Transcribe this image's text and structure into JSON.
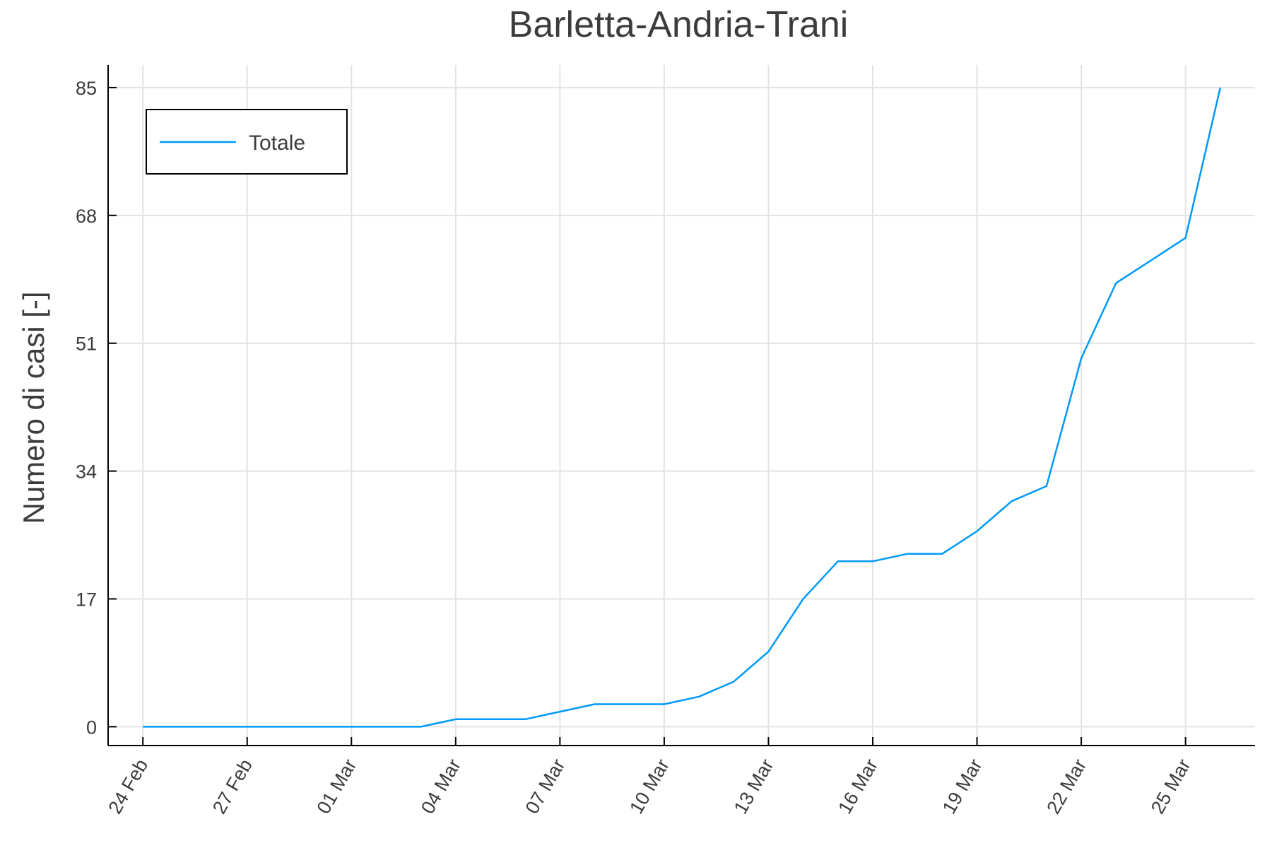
{
  "chart_data": {
    "type": "line",
    "title": "Barletta-Andria-Trani",
    "ylabel": "Numero di casi [-]",
    "xlabel": "",
    "ylim": [
      -2.5,
      88
    ],
    "xlim": [
      "2020-02-23",
      "2020-03-27"
    ],
    "yticks": [
      0,
      17,
      34,
      51,
      68,
      85
    ],
    "xticks": [
      {
        "date": "2020-02-24",
        "label": "24 Feb"
      },
      {
        "date": "2020-02-27",
        "label": "27 Feb"
      },
      {
        "date": "2020-03-01",
        "label": "01 Mar"
      },
      {
        "date": "2020-03-04",
        "label": "04 Mar"
      },
      {
        "date": "2020-03-07",
        "label": "07 Mar"
      },
      {
        "date": "2020-03-10",
        "label": "10 Mar"
      },
      {
        "date": "2020-03-13",
        "label": "13 Mar"
      },
      {
        "date": "2020-03-16",
        "label": "16 Mar"
      },
      {
        "date": "2020-03-19",
        "label": "19 Mar"
      },
      {
        "date": "2020-03-22",
        "label": "22 Mar"
      },
      {
        "date": "2020-03-25",
        "label": "25 Mar"
      }
    ],
    "grid": true,
    "legend_position": "top-left",
    "series": [
      {
        "name": "Totale",
        "color": "#009af9",
        "x": [
          "2020-02-24",
          "2020-02-25",
          "2020-02-26",
          "2020-02-27",
          "2020-02-28",
          "2020-02-29",
          "2020-03-01",
          "2020-03-02",
          "2020-03-03",
          "2020-03-04",
          "2020-03-05",
          "2020-03-06",
          "2020-03-07",
          "2020-03-08",
          "2020-03-09",
          "2020-03-10",
          "2020-03-11",
          "2020-03-12",
          "2020-03-13",
          "2020-03-14",
          "2020-03-15",
          "2020-03-16",
          "2020-03-17",
          "2020-03-18",
          "2020-03-19",
          "2020-03-20",
          "2020-03-21",
          "2020-03-22",
          "2020-03-23",
          "2020-03-24",
          "2020-03-25",
          "2020-03-26"
        ],
        "values": [
          0,
          0,
          0,
          0,
          0,
          0,
          0,
          0,
          0,
          1,
          1,
          1,
          2,
          3,
          3,
          3,
          4,
          6,
          10,
          17,
          22,
          22,
          23,
          23,
          26,
          30,
          32,
          49,
          59,
          62,
          65,
          85
        ]
      }
    ]
  }
}
